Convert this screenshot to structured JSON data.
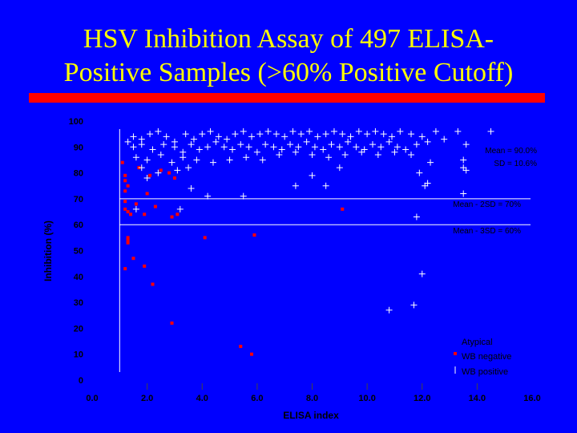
{
  "slide": {
    "title_line1": "HSV Inhibition Assay of 497 ELISA-",
    "title_line2": "Positive Samples (>60% Positive Cutoff)"
  },
  "colors": {
    "background": "#0000ff",
    "title": "#ffff00",
    "accent_bar": "#ff0000",
    "text": "#000000",
    "reference_lines": "#ffffff",
    "positive_marker": "#ffffff",
    "negative_marker": "#ff0000"
  },
  "chart_data": {
    "type": "scatter",
    "xlabel": "ELISA index",
    "ylabel": "Inhibition (%)",
    "xlim": [
      0,
      16
    ],
    "ylim": [
      0,
      100
    ],
    "x_ticks": [
      "0.0",
      "2.0",
      "4.0",
      "6.0",
      "8.0",
      "10.0",
      "12.0",
      "14.0",
      "16.0"
    ],
    "y_ticks": [
      "0",
      "10",
      "20",
      "30",
      "40",
      "50",
      "60",
      "70",
      "80",
      "90",
      "100"
    ],
    "grid": false,
    "legend_position": "bottom-right",
    "reference_lines": [
      {
        "y": 70,
        "label": "Mean - 2SD = 70%"
      },
      {
        "y": 60,
        "label": "Mean - 3SD = 60%"
      }
    ],
    "annotations": [
      "Mean = 90.0%",
      "SD = 10.6%"
    ],
    "series": [
      {
        "name": "WB negative",
        "marker": "square",
        "points": [
          [
            1.1,
            84
          ],
          [
            1.2,
            79
          ],
          [
            1.2,
            77
          ],
          [
            1.2,
            73
          ],
          [
            1.3,
            75
          ],
          [
            1.2,
            69
          ],
          [
            1.2,
            66
          ],
          [
            1.3,
            65
          ],
          [
            1.4,
            64
          ],
          [
            1.2,
            43
          ],
          [
            1.3,
            53
          ],
          [
            1.3,
            54
          ],
          [
            1.3,
            55
          ],
          [
            1.5,
            47
          ],
          [
            1.9,
            44
          ],
          [
            2.2,
            37
          ],
          [
            1.6,
            68
          ],
          [
            1.7,
            82
          ],
          [
            2.1,
            79
          ],
          [
            2.0,
            72
          ],
          [
            1.9,
            64
          ],
          [
            2.3,
            67
          ],
          [
            2.5,
            81
          ],
          [
            2.8,
            80
          ],
          [
            3.0,
            78
          ],
          [
            2.9,
            63
          ],
          [
            3.1,
            64
          ],
          [
            4.1,
            55
          ],
          [
            5.9,
            56
          ],
          [
            9.1,
            66
          ],
          [
            2.9,
            22
          ],
          [
            5.4,
            13
          ],
          [
            5.8,
            10
          ]
        ]
      },
      {
        "name": "WB positive",
        "marker": "plus",
        "points": [
          [
            1.3,
            92
          ],
          [
            1.5,
            94
          ],
          [
            1.8,
            93
          ],
          [
            2.1,
            95
          ],
          [
            2.4,
            96
          ],
          [
            2.7,
            94
          ],
          [
            3.0,
            92
          ],
          [
            3.4,
            95
          ],
          [
            3.7,
            93
          ],
          [
            4.0,
            95
          ],
          [
            4.3,
            96
          ],
          [
            4.6,
            94
          ],
          [
            4.9,
            93
          ],
          [
            5.2,
            95
          ],
          [
            5.5,
            96
          ],
          [
            5.8,
            94
          ],
          [
            6.1,
            95
          ],
          [
            6.4,
            96
          ],
          [
            6.7,
            95
          ],
          [
            7.0,
            94
          ],
          [
            7.3,
            96
          ],
          [
            7.6,
            95
          ],
          [
            7.9,
            96
          ],
          [
            8.2,
            94
          ],
          [
            8.5,
            95
          ],
          [
            8.8,
            96
          ],
          [
            9.1,
            95
          ],
          [
            9.4,
            94
          ],
          [
            9.7,
            96
          ],
          [
            10.0,
            95
          ],
          [
            10.3,
            96
          ],
          [
            10.6,
            95
          ],
          [
            10.9,
            94
          ],
          [
            11.2,
            96
          ],
          [
            11.6,
            95
          ],
          [
            12.0,
            94
          ],
          [
            12.5,
            96
          ],
          [
            13.3,
            96
          ],
          [
            14.5,
            96
          ],
          [
            1.5,
            90
          ],
          [
            1.8,
            91
          ],
          [
            2.2,
            89
          ],
          [
            2.6,
            91
          ],
          [
            3.0,
            90
          ],
          [
            3.3,
            88
          ],
          [
            3.6,
            91
          ],
          [
            3.9,
            89
          ],
          [
            4.2,
            90
          ],
          [
            4.5,
            92
          ],
          [
            4.8,
            90
          ],
          [
            5.1,
            89
          ],
          [
            5.4,
            91
          ],
          [
            5.7,
            90
          ],
          [
            6.0,
            88
          ],
          [
            6.3,
            91
          ],
          [
            6.6,
            90
          ],
          [
            6.9,
            89
          ],
          [
            7.2,
            91
          ],
          [
            7.5,
            90
          ],
          [
            7.8,
            92
          ],
          [
            8.1,
            90
          ],
          [
            8.4,
            89
          ],
          [
            8.7,
            91
          ],
          [
            9.0,
            90
          ],
          [
            9.3,
            92
          ],
          [
            9.6,
            90
          ],
          [
            9.9,
            89
          ],
          [
            10.2,
            91
          ],
          [
            10.5,
            90
          ],
          [
            10.8,
            92
          ],
          [
            11.1,
            90
          ],
          [
            11.4,
            89
          ],
          [
            11.8,
            91
          ],
          [
            12.2,
            92
          ],
          [
            12.8,
            93
          ],
          [
            13.6,
            91
          ],
          [
            1.6,
            86
          ],
          [
            2.0,
            85
          ],
          [
            2.5,
            87
          ],
          [
            2.9,
            84
          ],
          [
            3.3,
            86
          ],
          [
            3.8,
            85
          ],
          [
            4.4,
            84
          ],
          [
            5.0,
            85
          ],
          [
            5.6,
            86
          ],
          [
            6.2,
            85
          ],
          [
            6.8,
            87
          ],
          [
            7.4,
            88
          ],
          [
            8.0,
            87
          ],
          [
            8.6,
            86
          ],
          [
            9.2,
            87
          ],
          [
            9.8,
            88
          ],
          [
            10.4,
            87
          ],
          [
            11.0,
            88
          ],
          [
            11.6,
            87
          ],
          [
            12.3,
            84
          ],
          [
            13.5,
            85
          ],
          [
            1.8,
            82
          ],
          [
            2.4,
            80
          ],
          [
            3.1,
            81
          ],
          [
            3.5,
            82
          ],
          [
            8.0,
            79
          ],
          [
            9.0,
            82
          ],
          [
            11.9,
            80
          ],
          [
            13.5,
            82
          ],
          [
            13.6,
            81
          ],
          [
            2.0,
            78
          ],
          [
            3.6,
            74
          ],
          [
            4.2,
            71
          ],
          [
            5.5,
            71
          ],
          [
            7.4,
            75
          ],
          [
            8.5,
            75
          ],
          [
            12.1,
            75
          ],
          [
            12.2,
            76
          ],
          [
            13.5,
            72
          ],
          [
            1.6,
            66
          ],
          [
            3.2,
            66
          ],
          [
            11.8,
            63
          ],
          [
            12.0,
            41
          ],
          [
            11.7,
            29
          ],
          [
            10.8,
            27
          ]
        ]
      },
      {
        "name": "Atypical",
        "marker": "none",
        "points": []
      }
    ]
  }
}
